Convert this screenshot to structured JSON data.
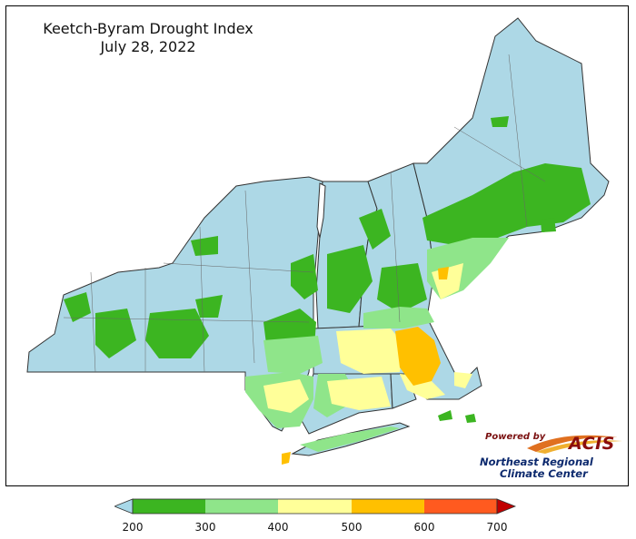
{
  "title": {
    "line1": "Keetch-Byram Drought Index",
    "line2": "July 28, 2022"
  },
  "legend": {
    "ticks": [
      "200",
      "300",
      "400",
      "500",
      "600",
      "700"
    ],
    "bins": [
      {
        "range": [
          200,
          300
        ],
        "color": "#3cb521"
      },
      {
        "range": [
          300,
          400
        ],
        "color": "#8fe58a"
      },
      {
        "range": [
          400,
          500
        ],
        "color": "#ffff99"
      },
      {
        "range": [
          500,
          600
        ],
        "color": "#ffc000"
      },
      {
        "range": [
          600,
          700
        ],
        "color": "#ff5a1f"
      }
    ],
    "under_color": "#a8d8e8",
    "over_color": "#c00000"
  },
  "logo": {
    "powered_by": "Powered by",
    "acis": "ACIS",
    "org_line1": "Northeast Regional",
    "org_line2": "Climate Center"
  },
  "colors": {
    "below_200": "#add8e6",
    "boundary": "#4a4a4a"
  }
}
